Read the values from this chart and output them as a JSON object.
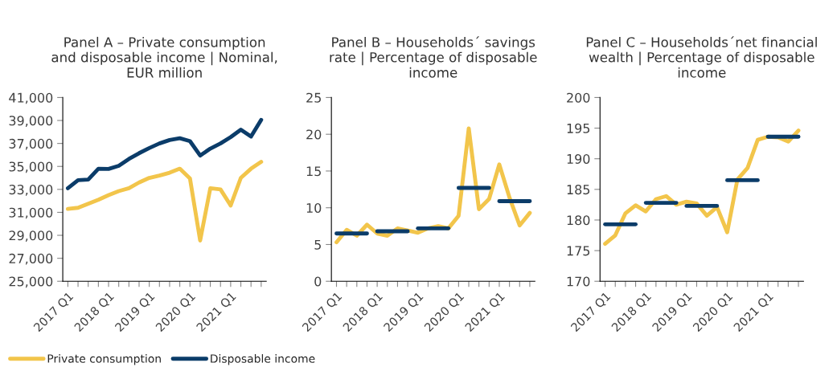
{
  "chart_data": [
    {
      "type": "line",
      "title": "Panel A – Private consumption\nand disposable income | Nominal,\nEUR million",
      "categories": [
        "2017 Q1",
        null,
        null,
        null,
        "2018 Q1",
        null,
        null,
        null,
        "2019 Q1",
        null,
        null,
        null,
        "2020 Q1",
        null,
        null,
        null,
        "2021 Q1",
        null,
        null,
        null
      ],
      "series": [
        {
          "name": "Private consumption",
          "color": "#f2c54b",
          "values": [
            31300,
            31400,
            31750,
            32100,
            32500,
            32850,
            33100,
            33600,
            34000,
            34200,
            34450,
            34800,
            33950,
            28550,
            33100,
            33000,
            31600,
            34000,
            34800,
            35400
          ]
        },
        {
          "name": "Disposable income",
          "color": "#0b3c69",
          "values": [
            33100,
            33800,
            33850,
            34800,
            34780,
            35050,
            35650,
            36150,
            36600,
            37000,
            37300,
            37450,
            37200,
            35950,
            36550,
            37000,
            37550,
            38200,
            37600,
            39050
          ]
        }
      ],
      "ylim": [
        25000,
        41000
      ],
      "yticks": [
        {
          "value": 25000,
          "label": "25,000"
        },
        {
          "value": 27000,
          "label": "27,000"
        },
        {
          "value": 29000,
          "label": "29,000"
        },
        {
          "value": 31000,
          "label": "31,000"
        },
        {
          "value": 33000,
          "label": "33,000"
        },
        {
          "value": 35000,
          "label": "35,000"
        },
        {
          "value": 37000,
          "label": "37,000"
        },
        {
          "value": 39000,
          "label": "39,000"
        },
        {
          "value": 41000,
          "label": "41,000"
        }
      ],
      "grid": false,
      "legend": "bottom"
    },
    {
      "type": "line",
      "title": "Panel B – Households´ savings\nrate | Percentage of disposable\nincome",
      "categories": [
        "2017 Q1",
        null,
        null,
        null,
        "2018 Q1",
        null,
        null,
        null,
        "2019 Q1",
        null,
        null,
        null,
        "2020 Q1",
        null,
        null,
        null,
        "2021 Q1",
        null,
        null,
        null
      ],
      "series": [
        {
          "color": "#f2c54b",
          "values": [
            5.3,
            7.0,
            6.2,
            7.7,
            6.5,
            6.2,
            7.2,
            6.9,
            6.6,
            7.2,
            7.5,
            7.2,
            8.9,
            20.8,
            9.8,
            11.2,
            15.9,
            11.4,
            7.6,
            9.3
          ]
        },
        {
          "color": "#0b3c69",
          "values": [
            6.5,
            6.5,
            6.5,
            6.5,
            null,
            null,
            null,
            null,
            null,
            null,
            null,
            null,
            null,
            null,
            null,
            null,
            null,
            null,
            null,
            null
          ]
        },
        {
          "color": "#0b3c69",
          "values": [
            null,
            null,
            null,
            null,
            6.8,
            6.8,
            6.8,
            6.8,
            null,
            null,
            null,
            null,
            null,
            null,
            null,
            null,
            null,
            null,
            null,
            null
          ]
        },
        {
          "color": "#0b3c69",
          "values": [
            null,
            null,
            null,
            null,
            null,
            null,
            null,
            null,
            7.2,
            7.2,
            7.2,
            7.2,
            null,
            null,
            null,
            null,
            null,
            null,
            null,
            null
          ]
        },
        {
          "color": "#0b3c69",
          "values": [
            null,
            null,
            null,
            null,
            null,
            null,
            null,
            null,
            null,
            null,
            null,
            null,
            12.7,
            12.7,
            12.7,
            12.7,
            null,
            null,
            null,
            null
          ]
        },
        {
          "color": "#0b3c69",
          "values": [
            null,
            null,
            null,
            null,
            null,
            null,
            null,
            null,
            null,
            null,
            null,
            null,
            null,
            null,
            null,
            null,
            10.9,
            10.9,
            10.9,
            10.9
          ]
        }
      ],
      "ylim": [
        0,
        25
      ],
      "yticks": [
        0,
        5,
        10,
        15,
        20,
        25
      ],
      "grid": false
    },
    {
      "type": "line",
      "title": "Panel C – Households´net financial\nwealth | Percentage of disposable\nincome",
      "categories": [
        "2017 Q1",
        null,
        null,
        null,
        "2018 Q1",
        null,
        null,
        null,
        "2019 Q1",
        null,
        null,
        null,
        "2020 Q1",
        null,
        null,
        null,
        "2021 Q1",
        null,
        null,
        null
      ],
      "series": [
        {
          "color": "#f2c54b",
          "values": [
            176.1,
            177.5,
            181.1,
            182.4,
            181.4,
            183.4,
            183.9,
            182.5,
            183.0,
            182.7,
            180.7,
            182.1,
            178.0,
            186.6,
            188.5,
            193.1,
            193.6,
            193.5,
            192.8,
            194.6
          ]
        },
        {
          "color": "#0b3c69",
          "values": [
            179.3,
            179.3,
            179.3,
            179.3,
            null,
            null,
            null,
            null,
            null,
            null,
            null,
            null,
            null,
            null,
            null,
            null,
            null,
            null,
            null,
            null
          ]
        },
        {
          "color": "#0b3c69",
          "values": [
            null,
            null,
            null,
            null,
            182.8,
            182.8,
            182.8,
            182.8,
            null,
            null,
            null,
            null,
            null,
            null,
            null,
            null,
            null,
            null,
            null,
            null
          ]
        },
        {
          "color": "#0b3c69",
          "values": [
            null,
            null,
            null,
            null,
            null,
            null,
            null,
            null,
            182.3,
            182.3,
            182.3,
            182.3,
            null,
            null,
            null,
            null,
            null,
            null,
            null,
            null
          ]
        },
        {
          "color": "#0b3c69",
          "values": [
            null,
            null,
            null,
            null,
            null,
            null,
            null,
            null,
            null,
            null,
            null,
            null,
            186.5,
            186.5,
            186.5,
            186.5,
            null,
            null,
            null,
            null
          ]
        },
        {
          "color": "#0b3c69",
          "values": [
            null,
            null,
            null,
            null,
            null,
            null,
            null,
            null,
            null,
            null,
            null,
            null,
            null,
            null,
            null,
            null,
            193.6,
            193.6,
            193.6,
            193.6
          ]
        }
      ],
      "ylim": [
        170,
        200
      ],
      "yticks": [
        170,
        175,
        180,
        185,
        190,
        195,
        200
      ],
      "grid": false
    }
  ]
}
